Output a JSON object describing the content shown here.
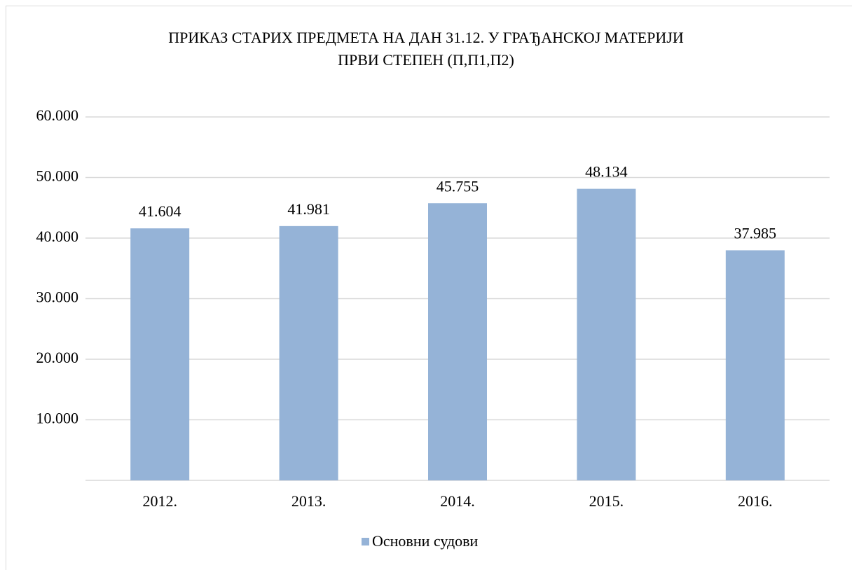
{
  "chart_data": {
    "type": "bar",
    "title": [
      "ПРИКАЗ СТАРИХ ПРЕДМЕТА НА ДАН 31.12. У ГРАЂАНСКОЈ МАТЕРИЈИ",
      "ПРВИ СТЕПЕН  (П,П1,П2)"
    ],
    "categories": [
      "2012.",
      "2013.",
      "2014.",
      "2015.",
      "2016."
    ],
    "series": [
      {
        "name": "Основни судови",
        "color": "#95b3d7",
        "values": [
          41604,
          41981,
          45755,
          48134,
          37985
        ],
        "value_labels": [
          "41.604",
          "41.981",
          "45.755",
          "48.134",
          "37.985"
        ]
      }
    ],
    "ylim": [
      0,
      60000
    ],
    "yticks": [
      {
        "value": 10000,
        "label": "10.000"
      },
      {
        "value": 20000,
        "label": "20.000"
      },
      {
        "value": 30000,
        "label": "30.000"
      },
      {
        "value": 40000,
        "label": "40.000"
      },
      {
        "value": 50000,
        "label": "50.000"
      },
      {
        "value": 60000,
        "label": "60.000"
      }
    ],
    "grid": true,
    "legend": "bottom"
  }
}
